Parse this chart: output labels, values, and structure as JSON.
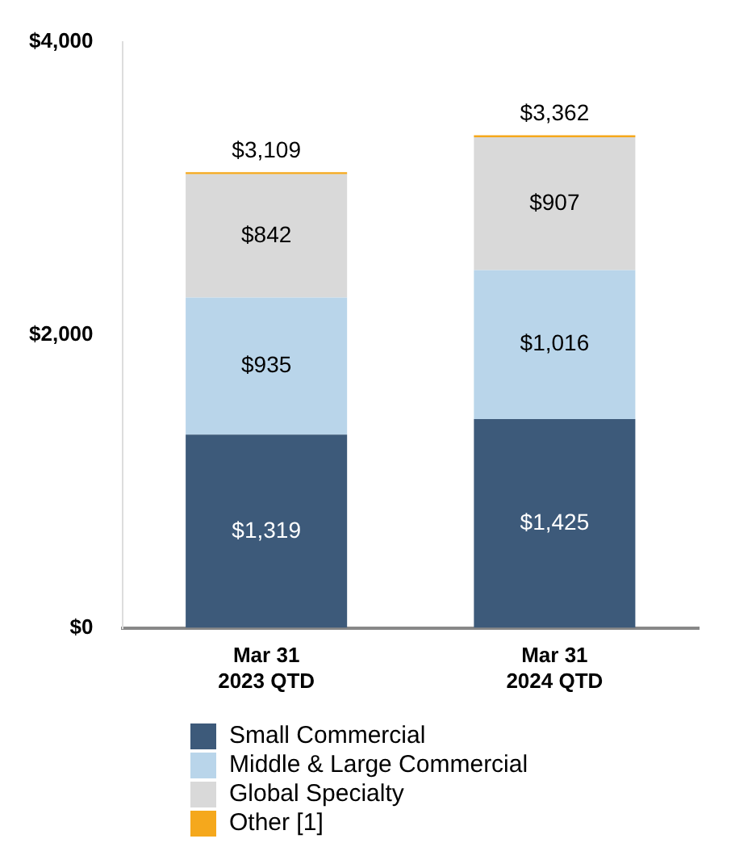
{
  "chart_data": {
    "type": "bar",
    "stacked": true,
    "categories": [
      "Mar 31\n2023 QTD",
      "Mar 31\n2024 QTD"
    ],
    "series": [
      {
        "name": "Small Commercial",
        "color": "#3d5a7a",
        "values": [
          1319,
          1425
        ],
        "value_labels": [
          "$1,319",
          "$1,425"
        ]
      },
      {
        "name": "Middle & Large Commercial",
        "color": "#b9d5ea",
        "values": [
          935,
          1016
        ],
        "value_labels": [
          "$935",
          "$1,016"
        ]
      },
      {
        "name": "Global Specialty",
        "color": "#d9d9d9",
        "values": [
          842,
          907
        ],
        "value_labels": [
          "$842",
          "$907"
        ]
      },
      {
        "name": "Other [1]",
        "color": "#f5a81c",
        "values": [
          13,
          14
        ]
      }
    ],
    "totals": [
      "$3,109",
      "$3,362"
    ],
    "ylim": [
      0,
      4000
    ],
    "yticks": [
      {
        "value": 0,
        "label": "$0"
      },
      {
        "value": 2000,
        "label": "$2,000"
      },
      {
        "value": 4000,
        "label": "$4,000"
      }
    ],
    "grid": false,
    "legend": "bottom"
  }
}
